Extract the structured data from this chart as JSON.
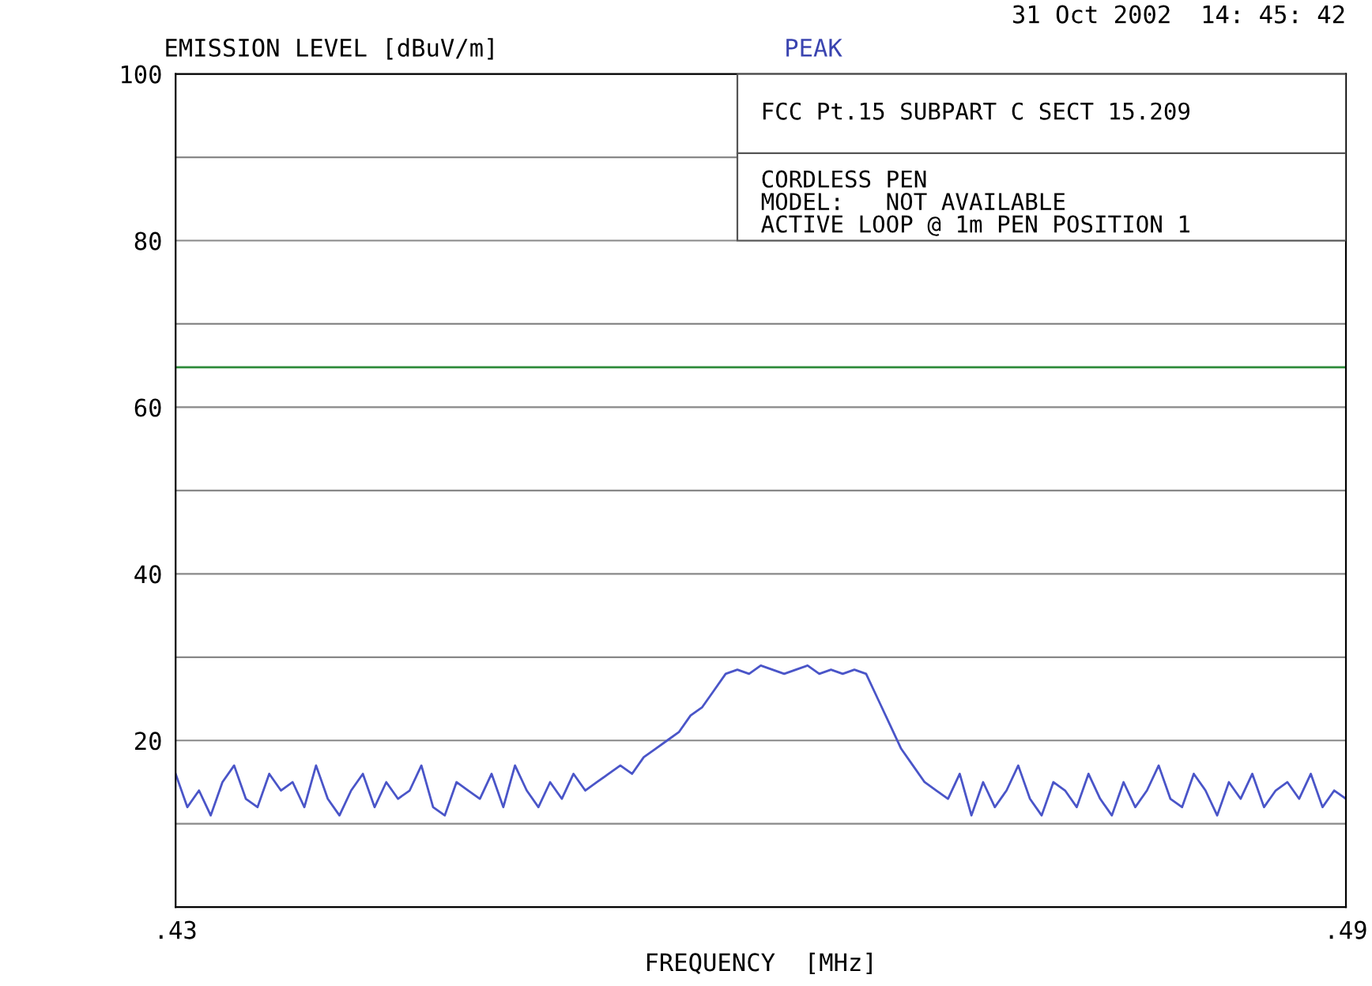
{
  "chart_data": {
    "type": "line",
    "ylabel": "EMISSION LEVEL [dBuV/m]",
    "xlabel": "FREQUENCY  [MHz]",
    "annotations": [
      "PEAK",
      "31 Oct 2002  14: 45: 42",
      "FCC Pt.15 SUBPART C SECT 15.209",
      "CORDLESS PEN",
      "MODEL:   NOT AVAILABLE",
      "ACTIVE LOOP @ 1m PEN POSITION 1"
    ],
    "x": [
      0.43,
      0.4306,
      0.4312,
      0.4318,
      0.4324,
      0.433,
      0.4336,
      0.4342,
      0.4348,
      0.4354,
      0.436,
      0.4366,
      0.4372,
      0.4378,
      0.4384,
      0.439,
      0.4396,
      0.4402,
      0.4408,
      0.4414,
      0.442,
      0.4426,
      0.4432,
      0.4438,
      0.4444,
      0.445,
      0.4456,
      0.4462,
      0.4468,
      0.4474,
      0.448,
      0.4486,
      0.4492,
      0.4498,
      0.4504,
      0.451,
      0.4516,
      0.4522,
      0.4528,
      0.4534,
      0.454,
      0.4546,
      0.4552,
      0.4558,
      0.4564,
      0.457,
      0.4576,
      0.4582,
      0.4588,
      0.4594,
      0.46,
      0.4606,
      0.4612,
      0.4618,
      0.4624,
      0.463,
      0.4636,
      0.4642,
      0.4648,
      0.4654,
      0.466,
      0.4666,
      0.4672,
      0.4678,
      0.4684,
      0.469,
      0.4696,
      0.4702,
      0.4708,
      0.4714,
      0.472,
      0.4726,
      0.4732,
      0.4738,
      0.4744,
      0.475,
      0.4756,
      0.4762,
      0.4768,
      0.4774,
      0.478,
      0.4786,
      0.4792,
      0.4798,
      0.4804,
      0.481,
      0.4816,
      0.4822,
      0.4828,
      0.4834,
      0.484,
      0.4846,
      0.4852,
      0.4858,
      0.4864,
      0.487,
      0.4876,
      0.4882,
      0.4888,
      0.4894,
      0.49
    ],
    "series": [
      {
        "color": "#4a55c8",
        "values": [
          16,
          12,
          14,
          11,
          15,
          17,
          13,
          12,
          16,
          14,
          15,
          12,
          17,
          13,
          11,
          14,
          16,
          12,
          15,
          13,
          14,
          17,
          12,
          11,
          15,
          14,
          13,
          16,
          12,
          17,
          14,
          12,
          15,
          13,
          16,
          14,
          15,
          16,
          17,
          16,
          18,
          19,
          20,
          21,
          23,
          24,
          26,
          28,
          28.5,
          28,
          29,
          28.5,
          28,
          28.5,
          29,
          28,
          28.5,
          28,
          28.5,
          28,
          25,
          22,
          19,
          17,
          15,
          14,
          13,
          16,
          11,
          15,
          12,
          14,
          17,
          13,
          11,
          15,
          14,
          12,
          16,
          13,
          11,
          15,
          12,
          14,
          17,
          13,
          12,
          16,
          14,
          11,
          15,
          13,
          16,
          12,
          14,
          15,
          13,
          16,
          12,
          14,
          13
        ]
      }
    ],
    "xlim": [
      0.43,
      0.49
    ],
    "xticks": [
      {
        "value": 0.43,
        "label": ".43"
      },
      {
        "value": 0.49,
        "label": ".49"
      }
    ],
    "ylim": [
      0,
      100
    ],
    "yticks": [
      {
        "value": 10,
        "label": null
      },
      20,
      {
        "value": 30,
        "label": null
      },
      40,
      {
        "value": 50,
        "label": null
      },
      60,
      {
        "value": 70,
        "label": null
      },
      80,
      {
        "value": 90,
        "label": null
      },
      100
    ],
    "ref_lines": [
      {
        "axis": "y",
        "value": 64.8,
        "color": "#2e8b3a"
      }
    ],
    "grid": "y",
    "marker": "none",
    "line_style": "solid"
  }
}
